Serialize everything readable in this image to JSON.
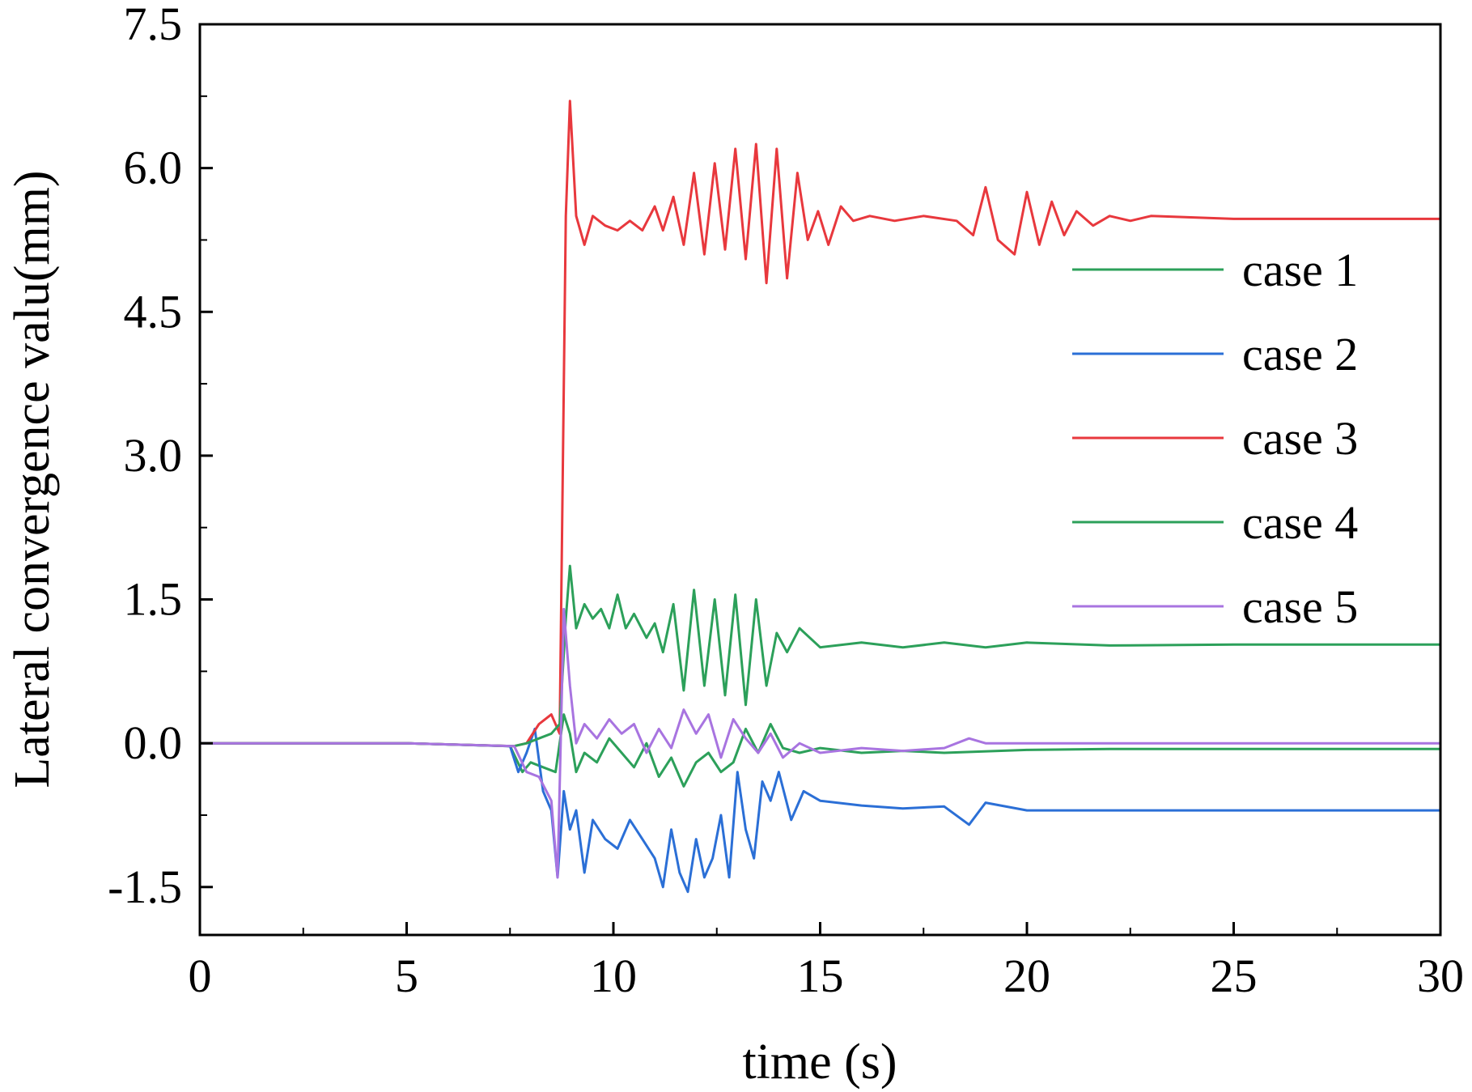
{
  "chart_data": {
    "type": "line",
    "title": "",
    "xlabel": "time (s)",
    "ylabel": "Lateral convergence valu(mm)",
    "xlim": [
      0,
      30
    ],
    "ylim": [
      -2.0,
      7.5
    ],
    "x_ticks": [
      0,
      5,
      10,
      15,
      20,
      25,
      30
    ],
    "x_tick_labels": [
      "0",
      "5",
      "10",
      "15",
      "20",
      "25",
      "30"
    ],
    "y_ticks": [
      -1.5,
      0.0,
      1.5,
      3.0,
      4.5,
      6.0,
      7.5
    ],
    "y_tick_labels": [
      "-1.5",
      "0.0",
      "1.5",
      "3.0",
      "4.5",
      "6.0",
      "7.5"
    ],
    "grid": false,
    "legend_position": "right",
    "series": [
      {
        "name": "case 1",
        "color": "#2ca05a",
        "x": [
          0,
          5,
          7.5,
          7.8,
          8.0,
          8.3,
          8.6,
          8.8,
          8.95,
          9.1,
          9.3,
          9.6,
          9.9,
          10.2,
          10.5,
          10.8,
          11.1,
          11.4,
          11.7,
          12.0,
          12.3,
          12.6,
          12.9,
          13.2,
          13.5,
          13.8,
          14.1,
          14.5,
          15,
          16,
          17,
          18,
          20,
          22,
          25,
          30
        ],
        "y": [
          0,
          0,
          -0.03,
          -0.3,
          -0.2,
          -0.25,
          -0.3,
          0.3,
          0.1,
          -0.3,
          -0.1,
          -0.2,
          0.05,
          -0.1,
          -0.25,
          0.0,
          -0.35,
          -0.15,
          -0.45,
          -0.2,
          -0.1,
          -0.3,
          -0.2,
          0.15,
          -0.1,
          0.2,
          -0.05,
          -0.1,
          -0.05,
          -0.1,
          -0.08,
          -0.1,
          -0.07,
          -0.06,
          -0.06,
          -0.06
        ]
      },
      {
        "name": "case 2",
        "color": "#2b6fd6",
        "x": [
          0,
          5,
          7.5,
          7.7,
          7.9,
          8.1,
          8.3,
          8.5,
          8.65,
          8.8,
          8.95,
          9.1,
          9.3,
          9.5,
          9.8,
          10.1,
          10.4,
          10.7,
          11.0,
          11.2,
          11.4,
          11.6,
          11.8,
          12.0,
          12.2,
          12.4,
          12.6,
          12.8,
          13.0,
          13.2,
          13.4,
          13.6,
          13.8,
          14.0,
          14.3,
          14.6,
          15,
          16,
          17,
          18,
          18.6,
          19,
          20,
          22,
          25,
          30
        ],
        "y": [
          0,
          0,
          -0.03,
          -0.3,
          -0.1,
          0.15,
          -0.5,
          -0.7,
          -1.4,
          -0.5,
          -0.9,
          -0.7,
          -1.35,
          -0.8,
          -1.0,
          -1.1,
          -0.8,
          -1.0,
          -1.2,
          -1.5,
          -0.9,
          -1.35,
          -1.55,
          -1.0,
          -1.4,
          -1.2,
          -0.75,
          -1.4,
          -0.3,
          -0.9,
          -1.2,
          -0.4,
          -0.6,
          -0.3,
          -0.8,
          -0.5,
          -0.6,
          -0.65,
          -0.68,
          -0.66,
          -0.85,
          -0.62,
          -0.7,
          -0.7,
          -0.7,
          -0.7
        ]
      },
      {
        "name": "case 3",
        "color": "#e8383d",
        "x": [
          0,
          5,
          7.6,
          7.9,
          8.2,
          8.5,
          8.7,
          8.85,
          8.95,
          9.1,
          9.3,
          9.5,
          9.8,
          10.1,
          10.4,
          10.7,
          11.0,
          11.2,
          11.45,
          11.7,
          11.95,
          12.2,
          12.45,
          12.7,
          12.95,
          13.2,
          13.45,
          13.7,
          13.95,
          14.2,
          14.45,
          14.7,
          14.95,
          15.2,
          15.5,
          15.8,
          16.2,
          16.8,
          17.5,
          18.3,
          18.7,
          19.0,
          19.3,
          19.7,
          20.0,
          20.3,
          20.6,
          20.9,
          21.2,
          21.6,
          22.0,
          22.5,
          23,
          25,
          30
        ],
        "y": [
          0,
          0,
          -0.03,
          0.0,
          0.2,
          0.3,
          0.1,
          5.5,
          6.7,
          5.5,
          5.2,
          5.5,
          5.4,
          5.35,
          5.45,
          5.35,
          5.6,
          5.35,
          5.7,
          5.2,
          5.95,
          5.1,
          6.05,
          5.15,
          6.2,
          5.05,
          6.25,
          4.8,
          6.2,
          4.85,
          5.95,
          5.25,
          5.55,
          5.2,
          5.6,
          5.45,
          5.5,
          5.45,
          5.5,
          5.45,
          5.3,
          5.8,
          5.25,
          5.1,
          5.75,
          5.2,
          5.65,
          5.3,
          5.55,
          5.4,
          5.5,
          5.45,
          5.5,
          5.47,
          5.47
        ]
      },
      {
        "name": "case 4",
        "color": "#2ca05a",
        "x": [
          0,
          5,
          7.6,
          7.9,
          8.2,
          8.5,
          8.7,
          8.85,
          8.95,
          9.1,
          9.3,
          9.5,
          9.7,
          9.9,
          10.1,
          10.3,
          10.5,
          10.8,
          11.0,
          11.2,
          11.45,
          11.7,
          11.95,
          12.2,
          12.45,
          12.7,
          12.95,
          13.2,
          13.45,
          13.7,
          13.95,
          14.2,
          14.5,
          15,
          16,
          17,
          18,
          19,
          20,
          22,
          25,
          30
        ],
        "y": [
          0,
          0,
          -0.03,
          0.0,
          0.05,
          0.1,
          0.2,
          1.3,
          1.85,
          1.2,
          1.45,
          1.3,
          1.4,
          1.2,
          1.55,
          1.2,
          1.35,
          1.1,
          1.25,
          0.95,
          1.45,
          0.55,
          1.6,
          0.6,
          1.5,
          0.5,
          1.55,
          0.4,
          1.5,
          0.6,
          1.15,
          0.95,
          1.2,
          1.0,
          1.05,
          1.0,
          1.05,
          1.0,
          1.05,
          1.02,
          1.03,
          1.03
        ]
      },
      {
        "name": "case 5",
        "color": "#a874e0",
        "x": [
          0,
          5,
          7.6,
          7.9,
          8.2,
          8.5,
          8.65,
          8.8,
          8.95,
          9.1,
          9.3,
          9.6,
          9.9,
          10.2,
          10.5,
          10.8,
          11.1,
          11.4,
          11.7,
          12.0,
          12.3,
          12.6,
          12.9,
          13.2,
          13.5,
          13.8,
          14.1,
          14.5,
          15,
          16,
          17,
          18,
          18.6,
          19,
          20,
          22,
          25,
          30
        ],
        "y": [
          0,
          0,
          -0.03,
          -0.3,
          -0.35,
          -0.6,
          -1.4,
          1.4,
          0.6,
          0.0,
          0.2,
          0.05,
          0.25,
          0.1,
          0.2,
          -0.1,
          0.15,
          -0.05,
          0.35,
          0.1,
          0.3,
          -0.15,
          0.25,
          0.05,
          -0.1,
          0.1,
          -0.15,
          0.0,
          -0.1,
          -0.05,
          -0.08,
          -0.05,
          0.05,
          0.0,
          0.0,
          0.0,
          0.0,
          0.0
        ]
      }
    ]
  }
}
